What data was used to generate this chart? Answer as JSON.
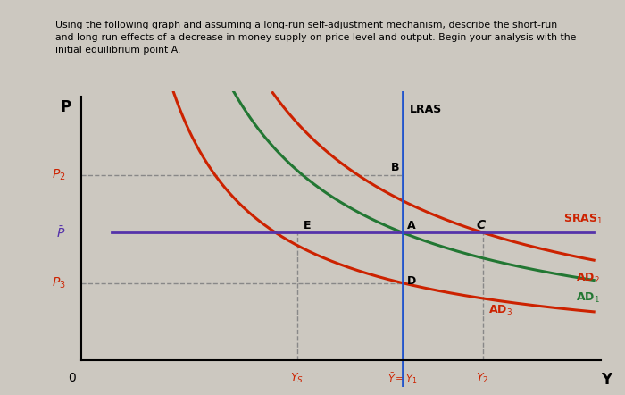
{
  "title_text": "Using the following graph and assuming a long-run self-adjustment mechanism, describe the short-run\nand long-run effects of a decrease in money supply on price level and output. Begin your analysis with the\ninitial equilibrium point A.",
  "bg_color": "#ccc8c0",
  "graph_bg": "#cac6be",
  "lras_color": "#2255cc",
  "lras_lw": 2.0,
  "sras1_color": "#5533aa",
  "sras1_lw": 2.0,
  "ad1_color": "#cc2200",
  "ad2_color": "#227733",
  "ad3_color": "#cc2200",
  "ad_lw": 2.2,
  "price_P2": 5.5,
  "price_Pbar": 3.8,
  "price_P3": 2.3,
  "Ys_x": 3.5,
  "Ybar_x": 5.2,
  "Y2_x": 6.5,
  "x_min": 0,
  "x_max": 8.5,
  "y_min": 0,
  "y_max": 8.0,
  "point_A": [
    5.2,
    3.8
  ],
  "point_B": [
    5.2,
    5.5
  ],
  "point_C": [
    6.5,
    3.8
  ],
  "point_D": [
    5.2,
    2.3
  ],
  "point_E": [
    3.5,
    3.8
  ],
  "red_label": "#cc2200",
  "dash_color": "#888888",
  "dash_lw": 1.0,
  "title_fontsize": 7.8,
  "label_fontsize": 9,
  "point_fontsize": 9
}
